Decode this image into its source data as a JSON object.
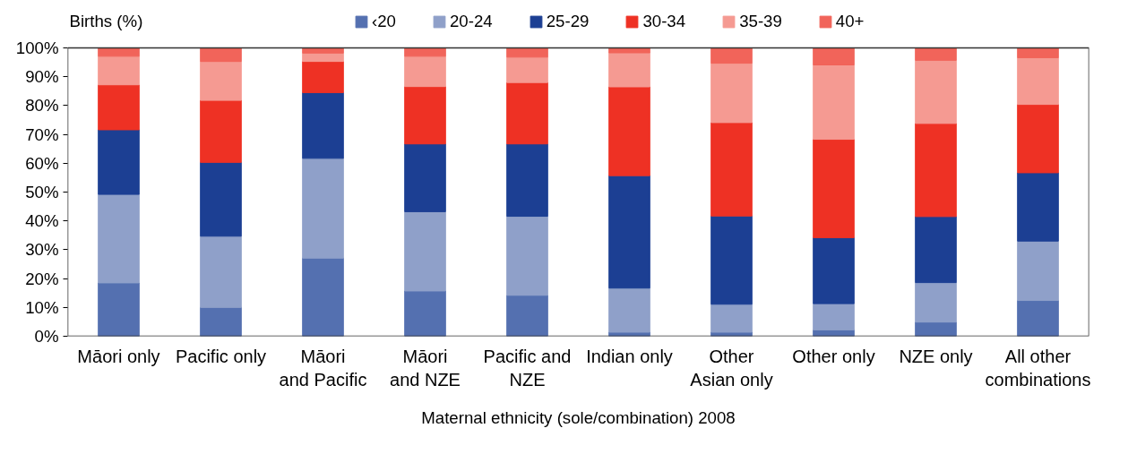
{
  "chart_data": {
    "type": "bar",
    "stacked": true,
    "ylabel": "Births (%)",
    "xlabel": "Maternal ethnicity (sole/combination) 2008",
    "categories": [
      "Māori only",
      "Pacific only",
      "Māori\nand Pacific",
      "Māori\nand NZE",
      "Pacific and\nNZE",
      "Indian only",
      "Other\nAsian only",
      "Other only",
      "NZE only",
      "All other\ncombinations"
    ],
    "series": [
      {
        "name": "‹20",
        "color": "#5470b0",
        "values": [
          18.5,
          10,
          27.1,
          15.7,
          14.2,
          1.4,
          1.4,
          2.2,
          4.9,
          12.4
        ]
      },
      {
        "name": "20-24",
        "color": "#8fa0c9",
        "values": [
          30.7,
          24.7,
          34.6,
          27.5,
          27.4,
          15.3,
          9.7,
          9.1,
          13.7,
          20.6
        ]
      },
      {
        "name": "25-29",
        "color": "#1c3f93",
        "values": [
          22.4,
          25.6,
          22.8,
          23.5,
          25.1,
          39.0,
          30.6,
          22.9,
          22.9,
          23.7
        ]
      },
      {
        "name": "30-34",
        "color": "#ee3124",
        "values": [
          15.6,
          21.5,
          10.8,
          19.9,
          21.3,
          30.8,
          32.4,
          34.1,
          32.3,
          23.7
        ]
      },
      {
        "name": "35-39",
        "color": "#f59a92",
        "values": [
          9.9,
          13.5,
          2.9,
          10.5,
          8.8,
          11.8,
          20.6,
          25.8,
          21.9,
          16.2
        ]
      },
      {
        "name": "40+",
        "color": "#f1645a",
        "values": [
          2.9,
          4.7,
          1.8,
          2.9,
          3.2,
          1.7,
          5.3,
          5.9,
          4.3,
          3.4
        ]
      }
    ],
    "ylim": [
      0,
      100
    ],
    "yticks": [
      {
        "value": 0,
        "label": "0%"
      },
      {
        "value": 10,
        "label": "10%"
      },
      {
        "value": 20,
        "label": "20%"
      },
      {
        "value": 30,
        "label": "30%"
      },
      {
        "value": 40,
        "label": "40%"
      },
      {
        "value": 50,
        "label": "50%"
      },
      {
        "value": 60,
        "label": "60%"
      },
      {
        "value": 70,
        "label": "70%"
      },
      {
        "value": 80,
        "label": "80%"
      },
      {
        "value": 90,
        "label": "90%"
      },
      {
        "value": 100,
        "label": "100%"
      }
    ],
    "grid": false,
    "legend": "top"
  }
}
